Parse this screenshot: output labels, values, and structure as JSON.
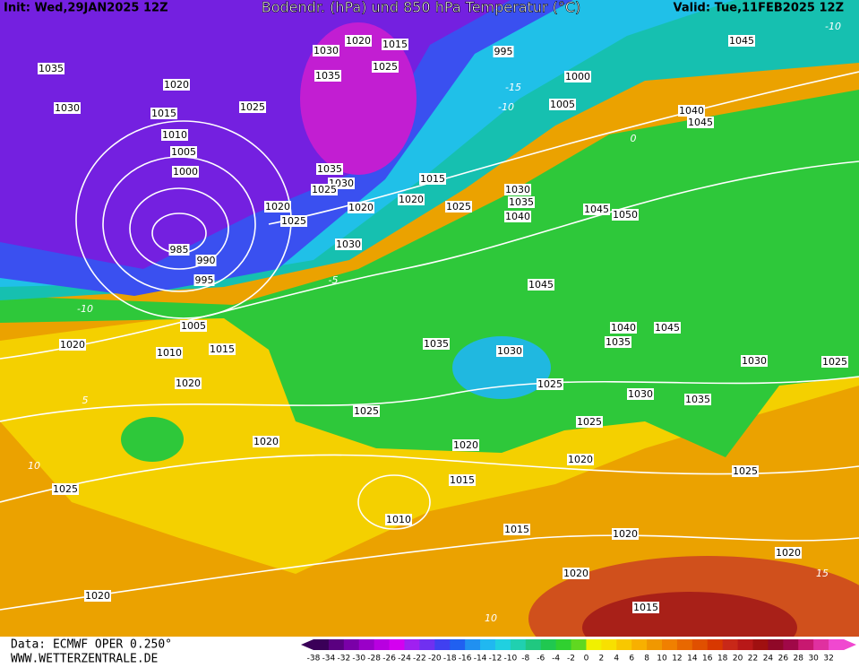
{
  "header": {
    "init": "Init: Wed,29JAN2025 12Z",
    "title": "Bodendr. (hPa) und 850 hPa Temperatur (°C)",
    "valid": "Valid: Tue,11FEB2025 12Z"
  },
  "footer": {
    "source": "Data: ECMWF OPER 0.250°",
    "site": "WWW.WETTERZENTRALE.DE"
  },
  "colorbar": {
    "labels": [
      -38,
      -34,
      -32,
      -30,
      -28,
      -26,
      -24,
      -22,
      -20,
      -18,
      -16,
      -14,
      -12,
      -10,
      -8,
      -6,
      -4,
      -2,
      0,
      2,
      4,
      6,
      8,
      10,
      12,
      14,
      16,
      18,
      20,
      22,
      24,
      26,
      28,
      30,
      32
    ]
  },
  "pressure_labels": [
    1035,
    1030,
    1020,
    1015,
    1010,
    1005,
    1000,
    985,
    990,
    995,
    1025,
    1020,
    1015,
    1030,
    1025,
    1035,
    995,
    1000,
    1005,
    1040,
    1045,
    1045,
    1035,
    1030,
    1025,
    1020,
    1025,
    1020,
    1020,
    1015,
    1025,
    1030,
    1030,
    1035,
    1040,
    1045,
    1050,
    1045,
    1040,
    1045,
    1035,
    1035,
    1030,
    1025,
    1030,
    1035,
    1030,
    1025,
    1025,
    1025,
    1020,
    1020,
    1025,
    1020,
    1015,
    1010,
    1015,
    1020,
    1020,
    1020,
    1015,
    1025,
    1020,
    1020,
    1010,
    1015,
    1005,
    1020
  ],
  "isotherm_labels": [
    -10,
    -15,
    -10,
    -5,
    0,
    5,
    10,
    10,
    15,
    -10
  ]
}
